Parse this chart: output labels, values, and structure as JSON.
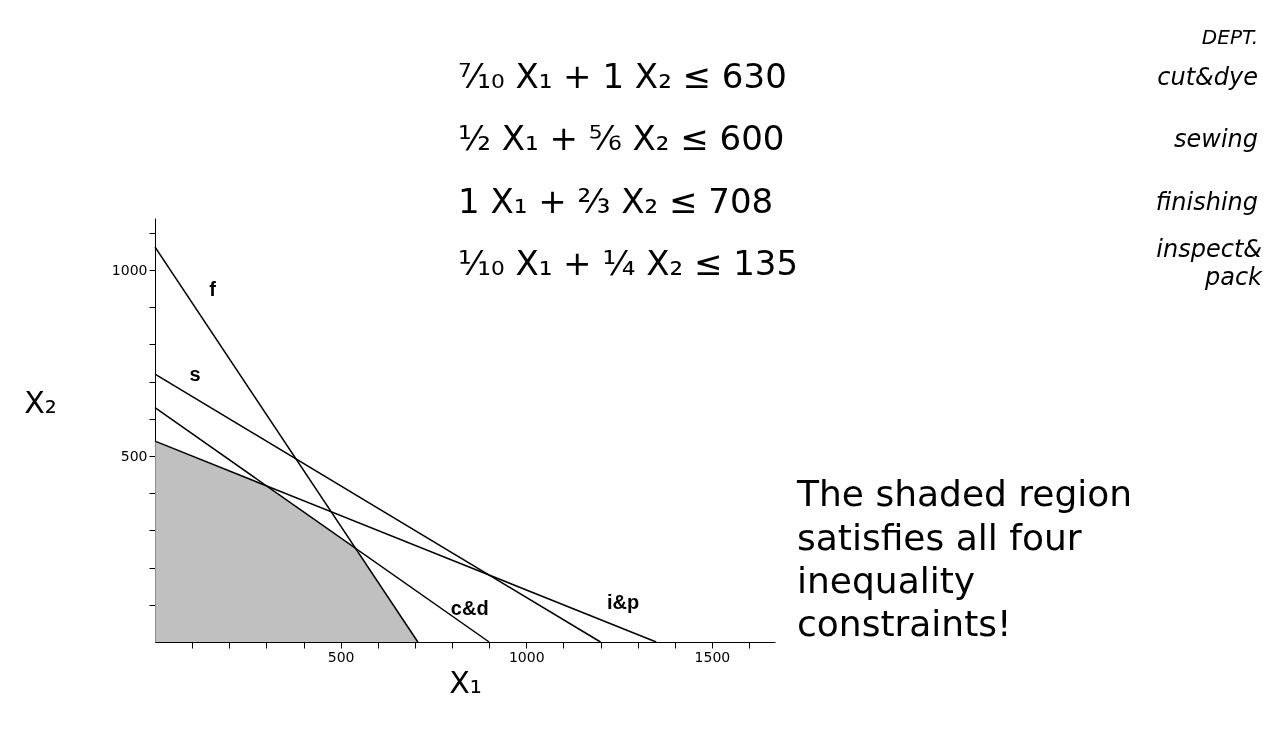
{
  "chart_data": {
    "type": "line",
    "xlabel": "X₁",
    "ylabel": "X₂",
    "series": [
      {
        "type": "area",
        "color": "#b0b0b0",
        "x": [
          0,
          300,
          540,
          708
        ],
        "values": [
          540,
          420,
          252,
          0
        ]
      },
      {
        "name": "f",
        "color": "#000000",
        "x": [
          0,
          708
        ],
        "values": [
          1062,
          0
        ]
      },
      {
        "name": "s",
        "color": "#000000",
        "x": [
          0,
          1200
        ],
        "values": [
          720,
          0
        ]
      },
      {
        "name": "c&d",
        "color": "#000000",
        "x": [
          0,
          900
        ],
        "values": [
          630,
          0
        ]
      },
      {
        "name": "i&p",
        "color": "#000000",
        "x": [
          0,
          1350
        ],
        "values": [
          540,
          0
        ]
      }
    ],
    "xlim": [
      0,
      1670
    ],
    "ylim": [
      0,
      1140
    ],
    "xticks": [
      {
        "value": 100,
        "label": null
      },
      {
        "value": 200,
        "label": null
      },
      {
        "value": 300,
        "label": null
      },
      {
        "value": 400,
        "label": null
      },
      500,
      {
        "value": 600,
        "label": null
      },
      {
        "value": 700,
        "label": null
      },
      {
        "value": 800,
        "label": null
      },
      {
        "value": 900,
        "label": null
      },
      1000,
      {
        "value": 1100,
        "label": null
      },
      {
        "value": 1200,
        "label": null
      },
      {
        "value": 1300,
        "label": null
      },
      {
        "value": 1400,
        "label": null
      },
      1500,
      {
        "value": 1600,
        "label": null
      }
    ],
    "yticks": [
      {
        "value": 100,
        "label": null
      },
      {
        "value": 200,
        "label": null
      },
      {
        "value": 300,
        "label": null
      },
      {
        "value": 400,
        "label": null
      },
      500,
      {
        "value": 600,
        "label": null
      },
      {
        "value": 700,
        "label": null
      },
      {
        "value": 800,
        "label": null
      },
      {
        "value": 900,
        "label": null
      },
      1000,
      {
        "value": 1100,
        "label": null
      }
    ],
    "grid": false,
    "line_style": "solid",
    "annotations": [
      "DEPT.",
      "⁷⁄₁₀ X₁ + 1 X₂ ≤ 630",
      "½ X₁ + ⅚ X₂ ≤ 600",
      "1 X₁ + ⅔ X₂ ≤ 708",
      "⅒ X₁ + ¼ X₂ ≤ 135",
      "cut&dye",
      "sewing",
      "finishing",
      "inspect& pack",
      "The shaded region\nsatisfies all four\ninequality\nconstraints!"
    ]
  }
}
